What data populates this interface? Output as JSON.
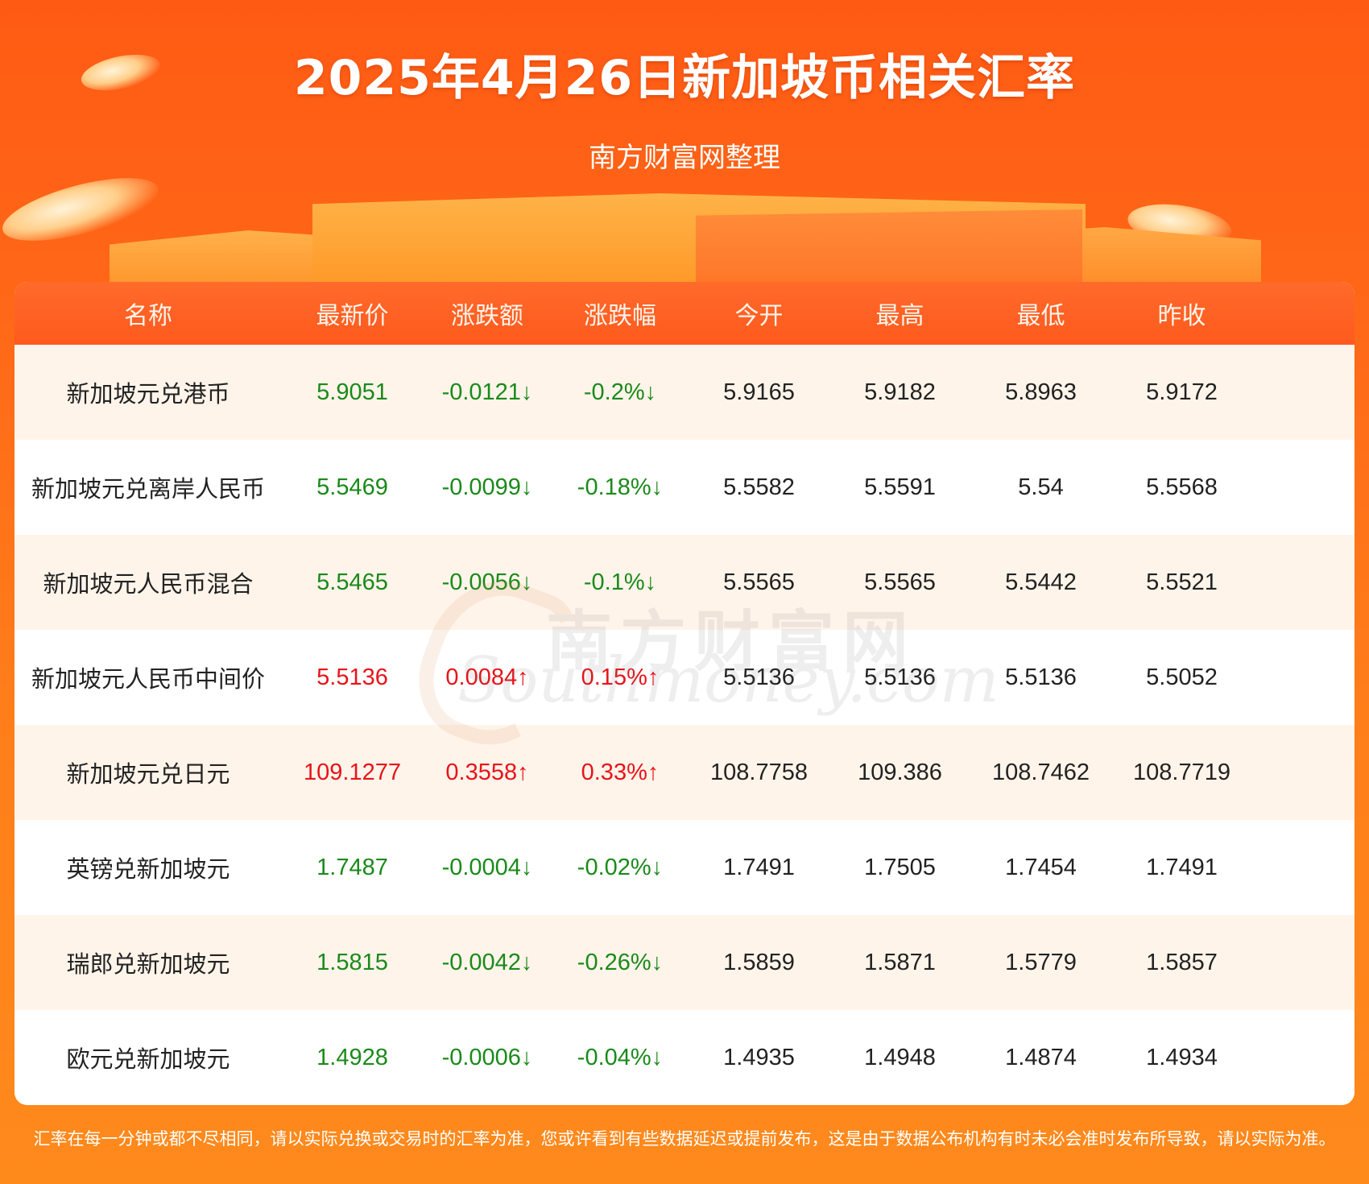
{
  "header": {
    "title": "2025年4月26日新加坡币相关汇率",
    "subtitle": "南方财富网整理"
  },
  "table": {
    "columns": [
      "名称",
      "最新价",
      "涨跌额",
      "涨跌幅",
      "今开",
      "最高",
      "最低",
      "昨收"
    ],
    "rows": [
      {
        "name": "新加坡元兑港币",
        "latest": "5.9051",
        "change": "-0.0121↓",
        "pct": "-0.2%↓",
        "open": "5.9165",
        "high": "5.9182",
        "low": "5.8963",
        "prev": "5.9172",
        "dir": "down"
      },
      {
        "name": "新加坡元兑离岸人民币",
        "latest": "5.5469",
        "change": "-0.0099↓",
        "pct": "-0.18%↓",
        "open": "5.5582",
        "high": "5.5591",
        "low": "5.54",
        "prev": "5.5568",
        "dir": "down"
      },
      {
        "name": "新加坡元人民币混合",
        "latest": "5.5465",
        "change": "-0.0056↓",
        "pct": "-0.1%↓",
        "open": "5.5565",
        "high": "5.5565",
        "low": "5.5442",
        "prev": "5.5521",
        "dir": "down"
      },
      {
        "name": "新加坡元人民币中间价",
        "latest": "5.5136",
        "change": "0.0084↑",
        "pct": "0.15%↑",
        "open": "5.5136",
        "high": "5.5136",
        "low": "5.5136",
        "prev": "5.5052",
        "dir": "up"
      },
      {
        "name": "新加坡元兑日元",
        "latest": "109.1277",
        "change": "0.3558↑",
        "pct": "0.33%↑",
        "open": "108.7758",
        "high": "109.386",
        "low": "108.7462",
        "prev": "108.7719",
        "dir": "up"
      },
      {
        "name": "英镑兑新加坡元",
        "latest": "1.7487",
        "change": "-0.0004↓",
        "pct": "-0.02%↓",
        "open": "1.7491",
        "high": "1.7505",
        "low": "1.7454",
        "prev": "1.7491",
        "dir": "down"
      },
      {
        "name": "瑞郎兑新加坡元",
        "latest": "1.5815",
        "change": "-0.0042↓",
        "pct": "-0.26%↓",
        "open": "1.5859",
        "high": "1.5871",
        "low": "1.5779",
        "prev": "1.5857",
        "dir": "down"
      },
      {
        "name": "欧元兑新加坡元",
        "latest": "1.4928",
        "change": "-0.0006↓",
        "pct": "-0.04%↓",
        "open": "1.4935",
        "high": "1.4948",
        "low": "1.4874",
        "prev": "1.4934",
        "dir": "down"
      }
    ]
  },
  "watermark": {
    "cn": "南方财富网",
    "en": "Southmoney.com"
  },
  "footer": "汇率在每一分钟或都不尽相同，请以实际兑换或交易时的汇率为准，您或许看到有些数据延迟或提前发布，这是由于数据公布机构有时未必会准时发布所导致，请以实际为准。",
  "colors": {
    "up": "#e8141a",
    "down": "#1a8a1a",
    "header_bg": "#ff5a1e",
    "row_alt": "#fff4ea"
  }
}
